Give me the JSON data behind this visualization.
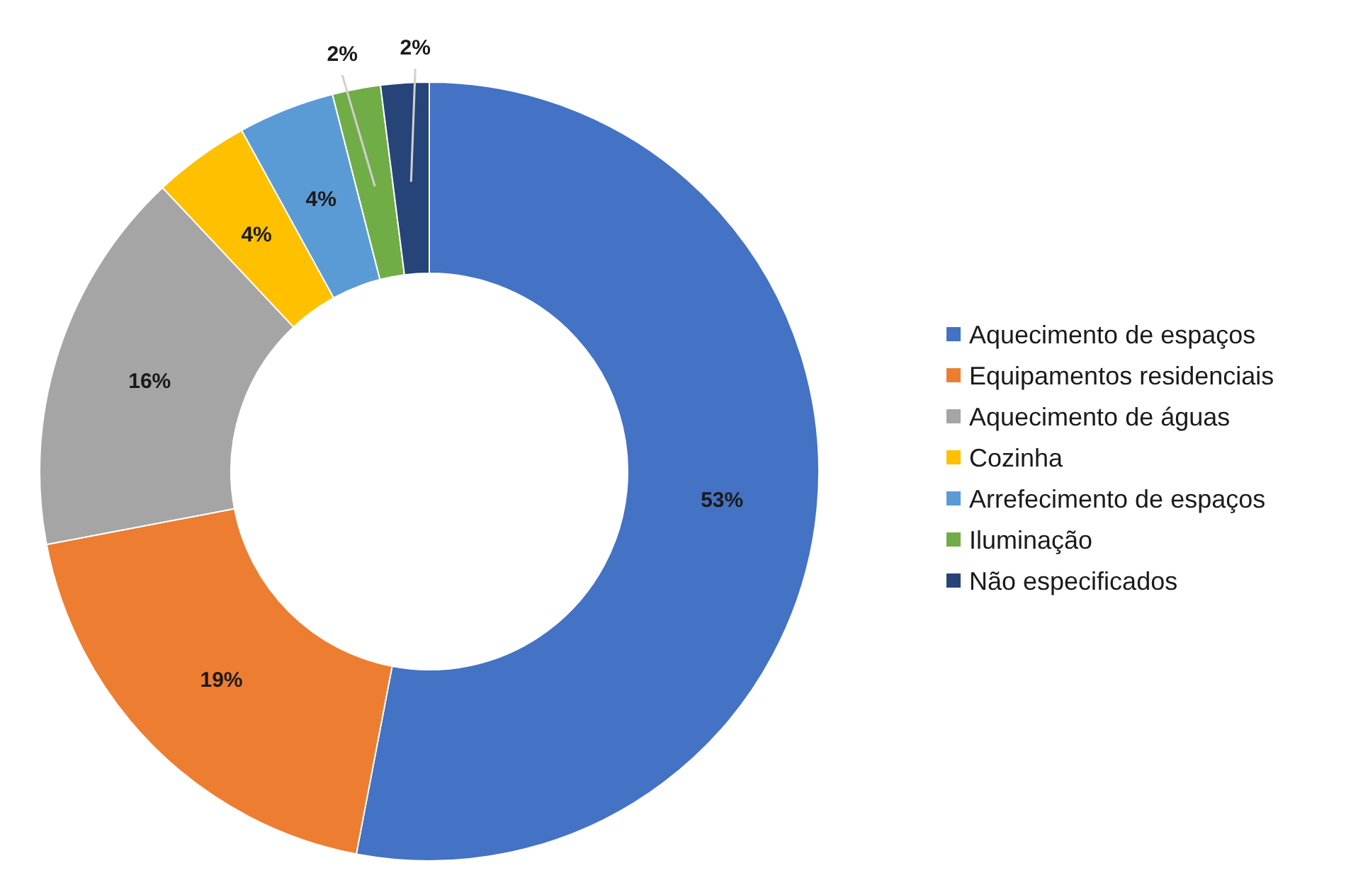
{
  "chart_data": {
    "type": "donut",
    "categories": [
      "Aquecimento de espaços",
      "Equipamentos residenciais",
      "Aquecimento de águas",
      "Cozinha",
      "Arrefecimento de espaços",
      "Iluminação",
      "Não especificados"
    ],
    "values": [
      53,
      19,
      16,
      4,
      4,
      2,
      2
    ],
    "value_labels": [
      "53%",
      "19%",
      "16%",
      "4%",
      "4%",
      "2%",
      "2%"
    ],
    "colors": [
      "#4472c4",
      "#ed7d31",
      "#a5a5a5",
      "#ffc000",
      "#5b9bd5",
      "#70ad47",
      "#264478"
    ],
    "legend": "right"
  }
}
